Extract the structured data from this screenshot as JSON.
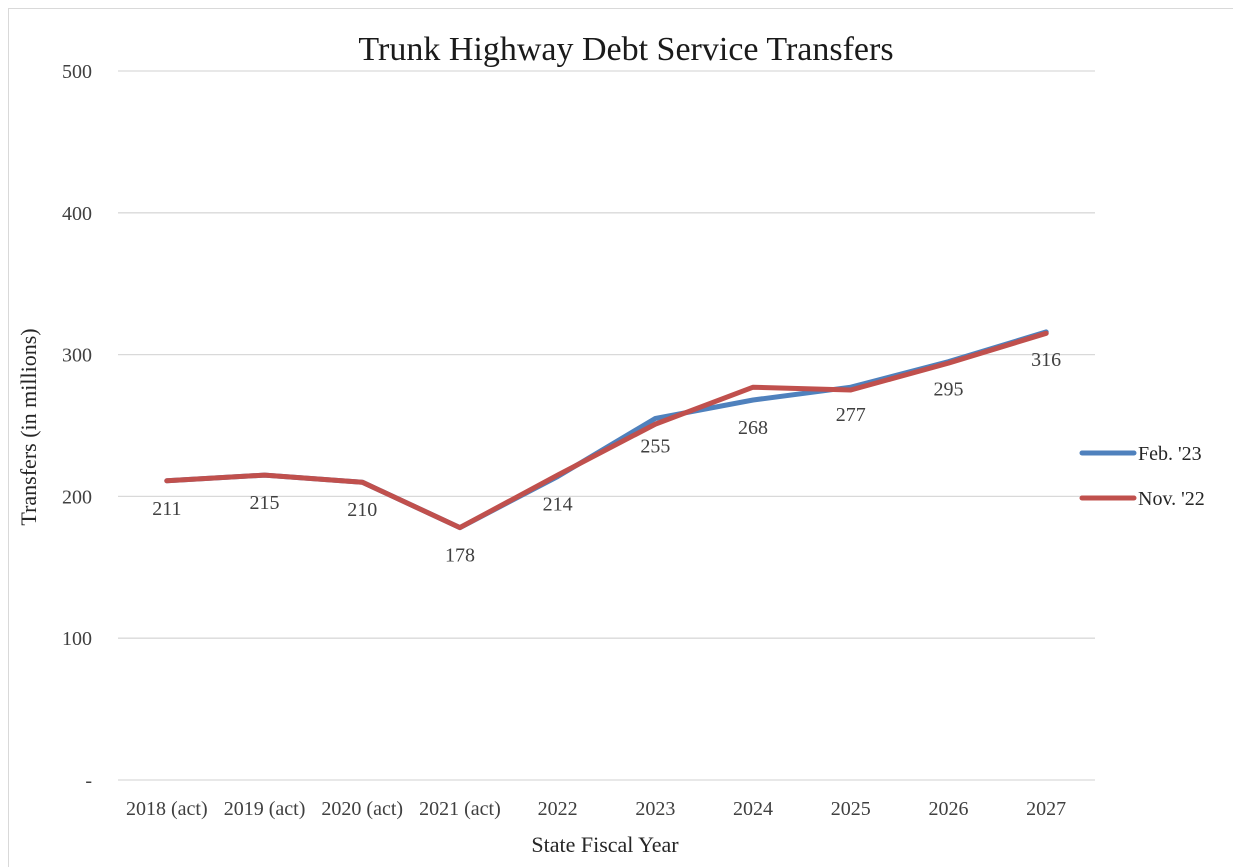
{
  "chart_data": {
    "type": "line",
    "title": "Trunk Highway Debt Service Transfers",
    "xlabel": "State Fiscal Year",
    "ylabel": "Transfers (in millions)",
    "categories": [
      "2018 (act)",
      "2019 (act)",
      "2020 (act)",
      "2021 (act)",
      "2022",
      "2023",
      "2024",
      "2025",
      "2026",
      "2027"
    ],
    "y_ticks": [
      0,
      100,
      200,
      300,
      400,
      500
    ],
    "y_tick_labels": [
      "-",
      "100",
      "200",
      "300",
      "400",
      "500"
    ],
    "ylim": [
      0,
      500
    ],
    "grid": true,
    "legend_position": "right",
    "series": [
      {
        "name": "Feb. '23",
        "color": "#4f81bd",
        "values": [
          211,
          215,
          210,
          178,
          214,
          255,
          268,
          277,
          295,
          316
        ]
      },
      {
        "name": "Nov. '22",
        "color": "#c0504d",
        "values": [
          211,
          215,
          210,
          178,
          215,
          251,
          277,
          275,
          294,
          315
        ]
      }
    ],
    "data_labels": [
      "211",
      "215",
      "210",
      "178",
      "214",
      "255",
      "268",
      "277",
      "295",
      "316"
    ]
  }
}
